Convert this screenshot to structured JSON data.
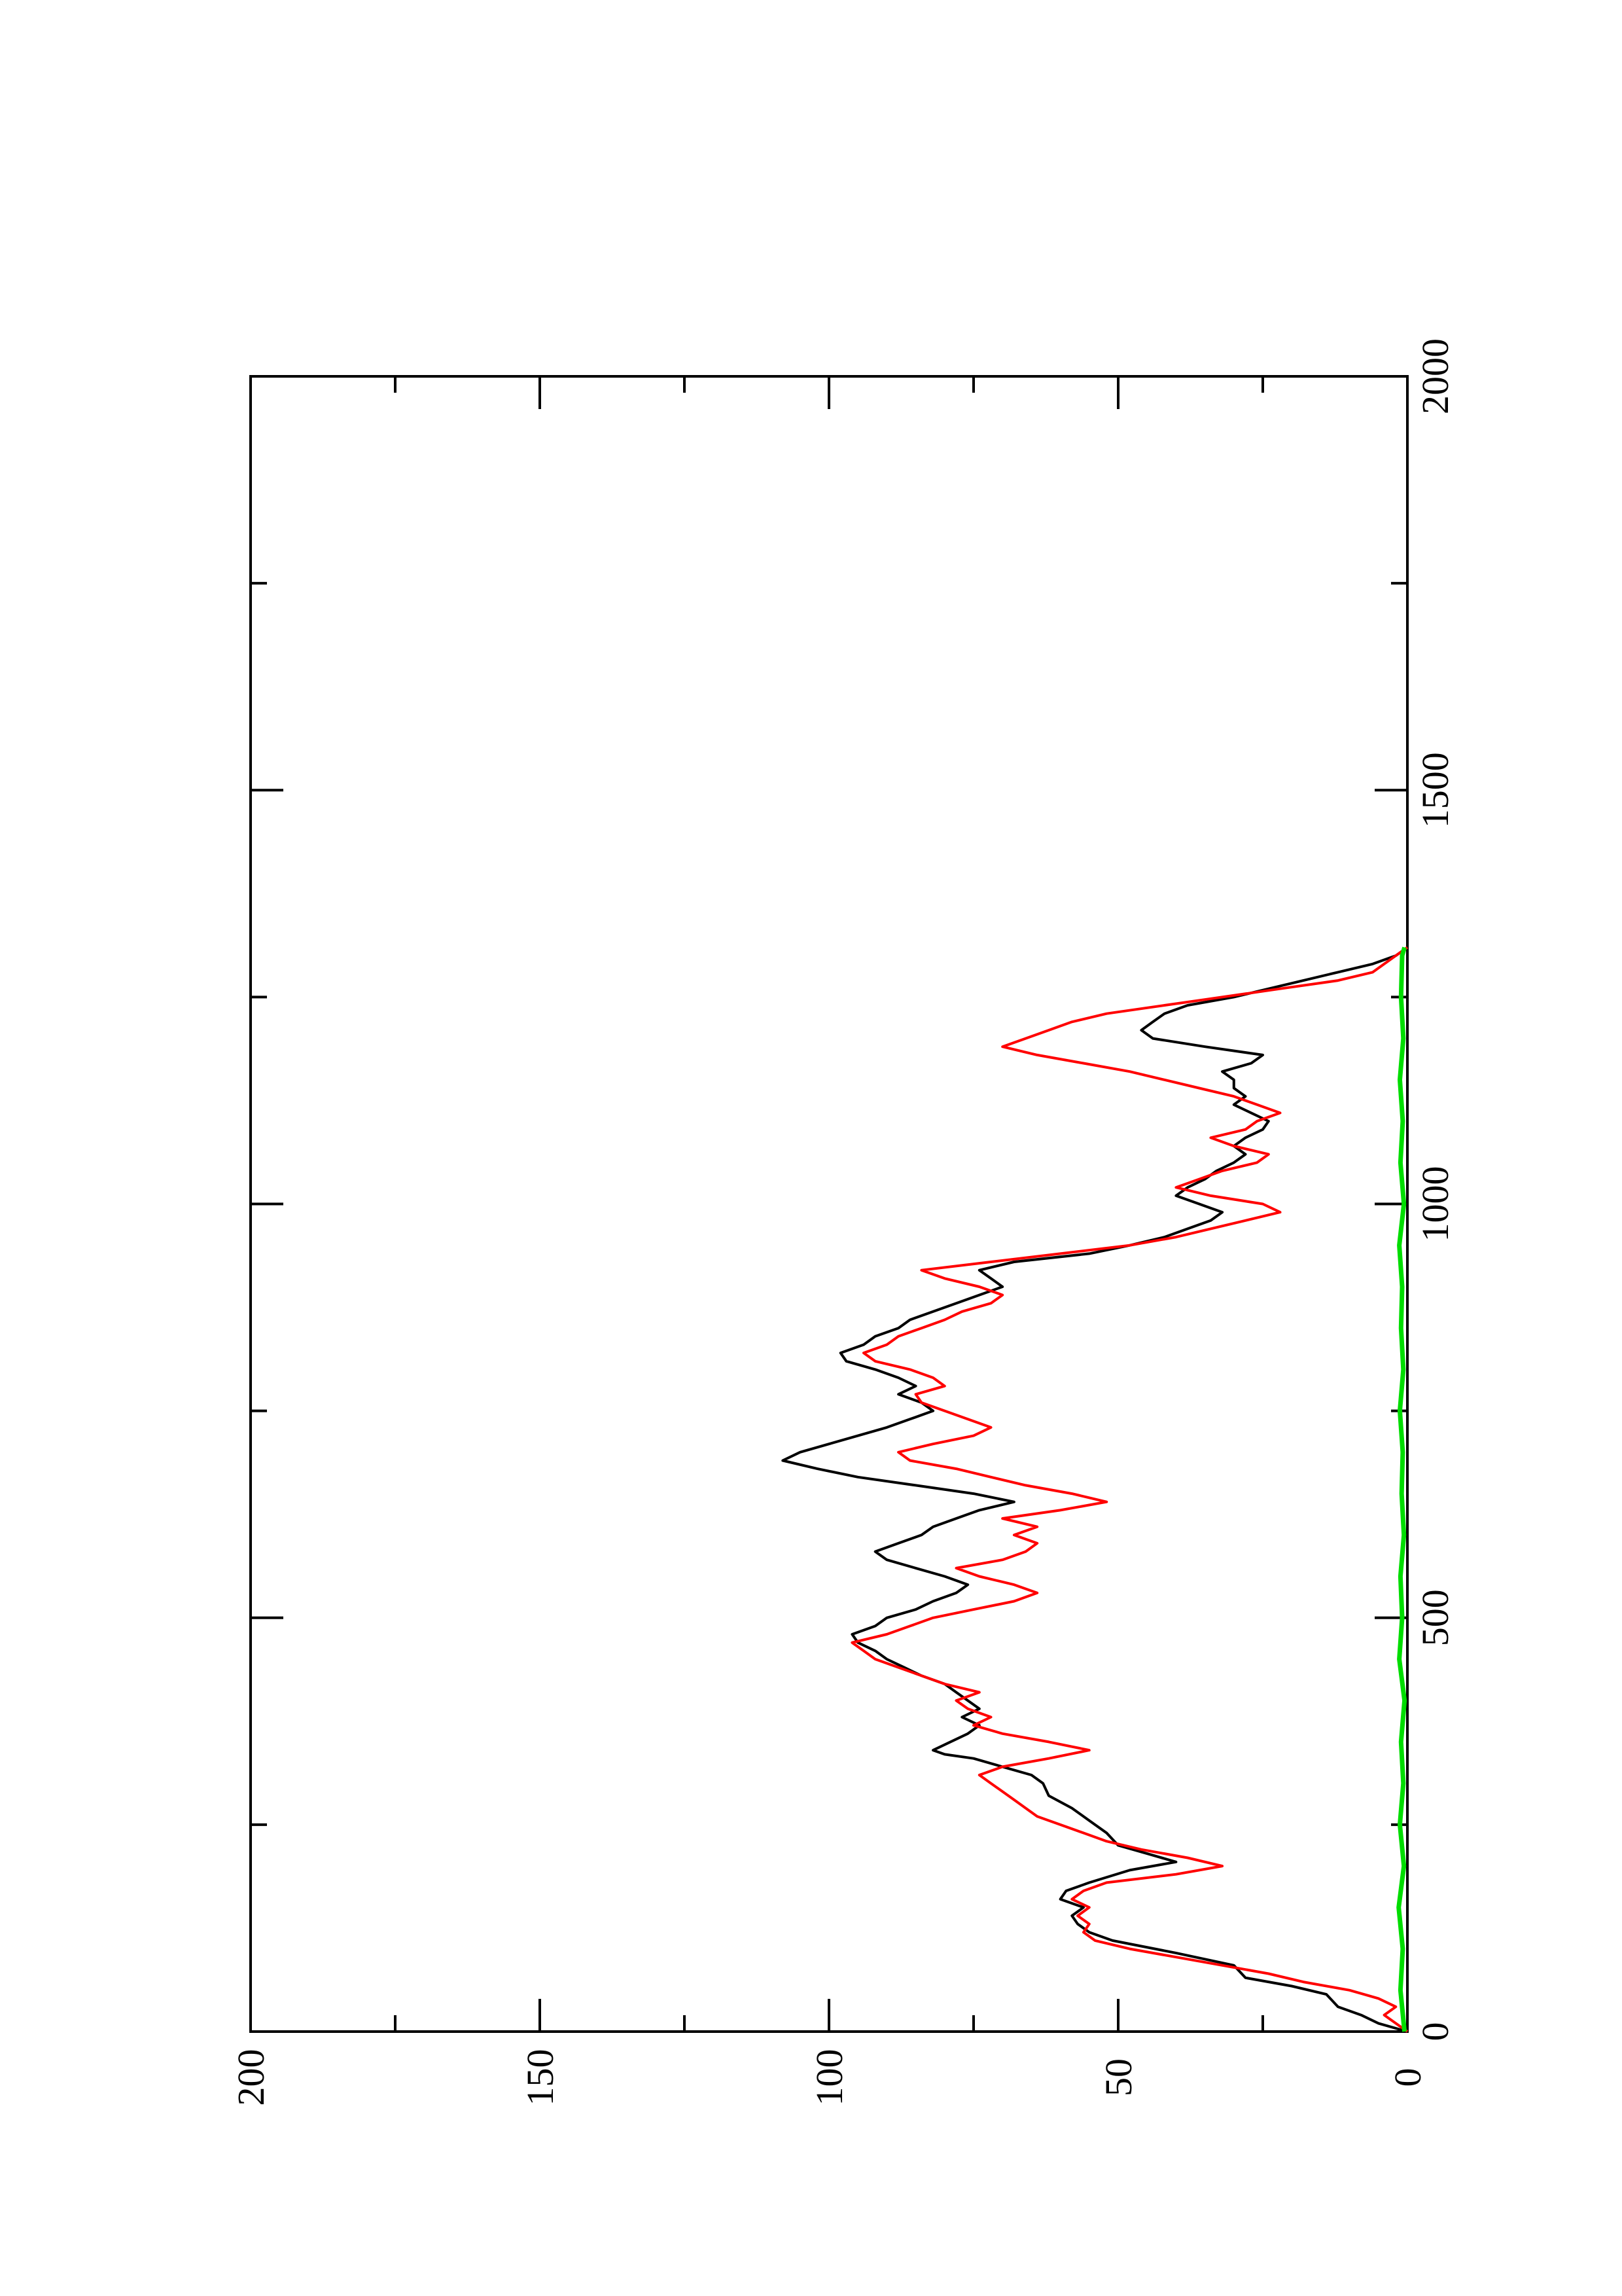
{
  "chart_data": {
    "type": "line",
    "orientation": "rotated 90° counter-clockwise (page is landscape plot printed on portrait sheet)",
    "title": "",
    "xlabel": "",
    "ylabel": "",
    "xlim": [
      0,
      2000
    ],
    "ylim": [
      0,
      200
    ],
    "x_ticks": [
      0,
      500,
      1000,
      1500,
      2000
    ],
    "x_tick_labels": [
      "0",
      "500",
      "1000",
      "1500",
      "2000"
    ],
    "y_ticks": [
      0,
      50,
      100,
      150,
      200
    ],
    "y_tick_labels": [
      "0",
      "50",
      "100",
      "150",
      "200"
    ],
    "grid": false,
    "legend": "none",
    "series": [
      {
        "color": "#000000",
        "points": [
          [
            0,
            0
          ],
          [
            10,
            5
          ],
          [
            20,
            8
          ],
          [
            30,
            12
          ],
          [
            45,
            14
          ],
          [
            55,
            20
          ],
          [
            65,
            28
          ],
          [
            80,
            30
          ],
          [
            95,
            40
          ],
          [
            110,
            51
          ],
          [
            120,
            55
          ],
          [
            130,
            57
          ],
          [
            140,
            58
          ],
          [
            150,
            56
          ],
          [
            160,
            60
          ],
          [
            170,
            59
          ],
          [
            180,
            55
          ],
          [
            195,
            48
          ],
          [
            205,
            40
          ],
          [
            215,
            45
          ],
          [
            225,
            50
          ],
          [
            240,
            52
          ],
          [
            255,
            55
          ],
          [
            270,
            58
          ],
          [
            285,
            62
          ],
          [
            300,
            63
          ],
          [
            310,
            65
          ],
          [
            320,
            70
          ],
          [
            330,
            75
          ],
          [
            335,
            80
          ],
          [
            340,
            82
          ],
          [
            350,
            79
          ],
          [
            360,
            76
          ],
          [
            370,
            74
          ],
          [
            380,
            77
          ],
          [
            390,
            74
          ],
          [
            400,
            76
          ],
          [
            410,
            78
          ],
          [
            420,
            80
          ],
          [
            430,
            84
          ],
          [
            440,
            87
          ],
          [
            450,
            90
          ],
          [
            460,
            92
          ],
          [
            470,
            95
          ],
          [
            480,
            96
          ],
          [
            490,
            92
          ],
          [
            500,
            90
          ],
          [
            510,
            85
          ],
          [
            520,
            82
          ],
          [
            530,
            78
          ],
          [
            540,
            76
          ],
          [
            550,
            80
          ],
          [
            560,
            85
          ],
          [
            570,
            90
          ],
          [
            580,
            92
          ],
          [
            590,
            88
          ],
          [
            600,
            84
          ],
          [
            610,
            82
          ],
          [
            620,
            78
          ],
          [
            630,
            74
          ],
          [
            640,
            68
          ],
          [
            650,
            75
          ],
          [
            660,
            85
          ],
          [
            670,
            95
          ],
          [
            680,
            102
          ],
          [
            690,
            108
          ],
          [
            700,
            105
          ],
          [
            710,
            100
          ],
          [
            720,
            95
          ],
          [
            730,
            90
          ],
          [
            740,
            86
          ],
          [
            750,
            82
          ],
          [
            760,
            84
          ],
          [
            770,
            88
          ],
          [
            780,
            85
          ],
          [
            790,
            88
          ],
          [
            800,
            92
          ],
          [
            810,
            97
          ],
          [
            820,
            98
          ],
          [
            830,
            94
          ],
          [
            840,
            92
          ],
          [
            850,
            88
          ],
          [
            860,
            86
          ],
          [
            870,
            82
          ],
          [
            880,
            78
          ],
          [
            890,
            74
          ],
          [
            900,
            70
          ],
          [
            910,
            72
          ],
          [
            920,
            74
          ],
          [
            930,
            68
          ],
          [
            940,
            55
          ],
          [
            950,
            48
          ],
          [
            960,
            42
          ],
          [
            970,
            38
          ],
          [
            980,
            34
          ],
          [
            990,
            32
          ],
          [
            1000,
            36
          ],
          [
            1010,
            40
          ],
          [
            1020,
            38
          ],
          [
            1030,
            35
          ],
          [
            1040,
            33
          ],
          [
            1050,
            30
          ],
          [
            1060,
            28
          ],
          [
            1070,
            30
          ],
          [
            1080,
            28
          ],
          [
            1090,
            25
          ],
          [
            1100,
            24
          ],
          [
            1110,
            27
          ],
          [
            1120,
            30
          ],
          [
            1130,
            28
          ],
          [
            1140,
            30
          ],
          [
            1150,
            30
          ],
          [
            1160,
            32
          ],
          [
            1170,
            27
          ],
          [
            1180,
            25
          ],
          [
            1190,
            35
          ],
          [
            1200,
            44
          ],
          [
            1210,
            46
          ],
          [
            1220,
            44
          ],
          [
            1230,
            42
          ],
          [
            1240,
            38
          ],
          [
            1250,
            30
          ],
          [
            1260,
            24
          ],
          [
            1270,
            18
          ],
          [
            1280,
            12
          ],
          [
            1290,
            6
          ],
          [
            1300,
            2
          ],
          [
            1310,
            0
          ]
        ]
      },
      {
        "color": "#ff0000",
        "points": [
          [
            0,
            0
          ],
          [
            10,
            2
          ],
          [
            20,
            4
          ],
          [
            30,
            2
          ],
          [
            40,
            5
          ],
          [
            50,
            10
          ],
          [
            60,
            18
          ],
          [
            70,
            24
          ],
          [
            80,
            32
          ],
          [
            90,
            40
          ],
          [
            100,
            48
          ],
          [
            110,
            54
          ],
          [
            120,
            56
          ],
          [
            130,
            55
          ],
          [
            140,
            57
          ],
          [
            150,
            55
          ],
          [
            160,
            58
          ],
          [
            170,
            56
          ],
          [
            180,
            52
          ],
          [
            190,
            40
          ],
          [
            200,
            32
          ],
          [
            210,
            38
          ],
          [
            220,
            46
          ],
          [
            230,
            52
          ],
          [
            240,
            56
          ],
          [
            250,
            60
          ],
          [
            260,
            64
          ],
          [
            270,
            66
          ],
          [
            280,
            68
          ],
          [
            290,
            70
          ],
          [
            300,
            72
          ],
          [
            310,
            74
          ],
          [
            320,
            70
          ],
          [
            330,
            62
          ],
          [
            340,
            55
          ],
          [
            350,
            62
          ],
          [
            360,
            70
          ],
          [
            370,
            75
          ],
          [
            380,
            72
          ],
          [
            390,
            76
          ],
          [
            400,
            78
          ],
          [
            410,
            74
          ],
          [
            420,
            80
          ],
          [
            430,
            84
          ],
          [
            440,
            88
          ],
          [
            450,
            92
          ],
          [
            460,
            94
          ],
          [
            470,
            96
          ],
          [
            480,
            90
          ],
          [
            490,
            86
          ],
          [
            500,
            82
          ],
          [
            510,
            75
          ],
          [
            520,
            68
          ],
          [
            530,
            64
          ],
          [
            540,
            68
          ],
          [
            550,
            74
          ],
          [
            560,
            78
          ],
          [
            570,
            70
          ],
          [
            580,
            66
          ],
          [
            590,
            64
          ],
          [
            600,
            68
          ],
          [
            610,
            64
          ],
          [
            620,
            70
          ],
          [
            630,
            60
          ],
          [
            640,
            52
          ],
          [
            650,
            58
          ],
          [
            660,
            66
          ],
          [
            670,
            72
          ],
          [
            680,
            78
          ],
          [
            690,
            86
          ],
          [
            700,
            88
          ],
          [
            710,
            82
          ],
          [
            720,
            75
          ],
          [
            730,
            72
          ],
          [
            740,
            76
          ],
          [
            750,
            80
          ],
          [
            760,
            84
          ],
          [
            770,
            85
          ],
          [
            780,
            80
          ],
          [
            790,
            82
          ],
          [
            800,
            86
          ],
          [
            810,
            92
          ],
          [
            820,
            94
          ],
          [
            830,
            90
          ],
          [
            840,
            88
          ],
          [
            850,
            84
          ],
          [
            860,
            80
          ],
          [
            870,
            77
          ],
          [
            880,
            72
          ],
          [
            890,
            70
          ],
          [
            900,
            74
          ],
          [
            910,
            80
          ],
          [
            920,
            84
          ],
          [
            930,
            72
          ],
          [
            940,
            60
          ],
          [
            950,
            48
          ],
          [
            960,
            40
          ],
          [
            970,
            34
          ],
          [
            980,
            28
          ],
          [
            990,
            22
          ],
          [
            1000,
            25
          ],
          [
            1010,
            34
          ],
          [
            1020,
            40
          ],
          [
            1030,
            36
          ],
          [
            1040,
            32
          ],
          [
            1050,
            26
          ],
          [
            1060,
            24
          ],
          [
            1070,
            30
          ],
          [
            1080,
            34
          ],
          [
            1090,
            28
          ],
          [
            1100,
            26
          ],
          [
            1110,
            22
          ],
          [
            1120,
            26
          ],
          [
            1130,
            30
          ],
          [
            1140,
            36
          ],
          [
            1150,
            42
          ],
          [
            1160,
            48
          ],
          [
            1170,
            56
          ],
          [
            1180,
            64
          ],
          [
            1190,
            70
          ],
          [
            1200,
            66
          ],
          [
            1210,
            62
          ],
          [
            1220,
            58
          ],
          [
            1230,
            52
          ],
          [
            1240,
            42
          ],
          [
            1250,
            32
          ],
          [
            1260,
            22
          ],
          [
            1270,
            12
          ],
          [
            1280,
            6
          ],
          [
            1290,
            4
          ],
          [
            1300,
            2
          ],
          [
            1310,
            0
          ]
        ]
      },
      {
        "color": "#00dd00",
        "points": [
          [
            0,
            0.5
          ],
          [
            50,
            1.2
          ],
          [
            100,
            0.8
          ],
          [
            150,
            1.5
          ],
          [
            200,
            0.6
          ],
          [
            250,
            1.3
          ],
          [
            300,
            0.7
          ],
          [
            350,
            1.1
          ],
          [
            400,
            0.5
          ],
          [
            450,
            1.4
          ],
          [
            500,
            0.9
          ],
          [
            550,
            1.2
          ],
          [
            600,
            0.6
          ],
          [
            650,
            1.0
          ],
          [
            700,
            0.8
          ],
          [
            750,
            1.3
          ],
          [
            800,
            0.7
          ],
          [
            850,
            1.1
          ],
          [
            900,
            0.9
          ],
          [
            950,
            1.4
          ],
          [
            1000,
            0.6
          ],
          [
            1050,
            1.2
          ],
          [
            1100,
            0.8
          ],
          [
            1150,
            1.3
          ],
          [
            1200,
            0.7
          ],
          [
            1250,
            1.1
          ],
          [
            1300,
            0.9
          ],
          [
            1310,
            0.5
          ]
        ]
      }
    ]
  }
}
